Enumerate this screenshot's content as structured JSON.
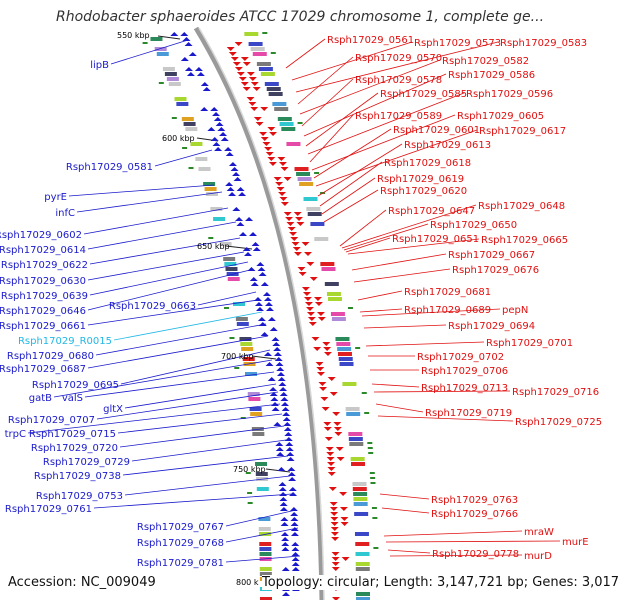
{
  "title": "Rhodobacter sphaeroides ATCC 17029 chromosome 1, complete ge...",
  "accession": "Accession: NC_009049",
  "summary": "Topology: circular; Length: 3,147,721 bp; Genes: 3,017",
  "colors": {
    "left_gene": "#1a1acc",
    "right_gene": "#e01010",
    "rna_gene": "#22b8e6",
    "backbone": "#999999"
  },
  "kbp_marks": [
    "550 kbp",
    "600 kbp",
    "650 kbp",
    "700 kbp",
    "750 kbp",
    "800 k"
  ],
  "left_labels": [
    "lipB",
    "Rsph17029_0581",
    "pyrE",
    "infC",
    "Rsph17029_0602",
    "Rsph17029_0614",
    "Rsph17029_0622",
    "Rsph17029_0630",
    "Rsph17029_0639",
    "Rsph17029_0646",
    "Rsph17029_0663",
    "Rsph17029_0661",
    "Rsph17029_R0015",
    "Rsph17029_0680",
    "Rsph17029_0687",
    "Rsph17029_0695",
    "gatB",
    "valS",
    "gltX",
    "Rsph17029_0707",
    "trpC",
    "Rsph17029_0715",
    "Rsph17029_0720",
    "Rsph17029_0729",
    "Rsph17029_0738",
    "Rsph17029_0753",
    "Rsph17029_0761",
    "Rsph17029_0767",
    "Rsph17029_0768",
    "Rsph17029_0781"
  ],
  "right_labels": [
    "Rsph17029_0561",
    "Rsph17029_0573",
    "Rsph17029_0583",
    "Rsph17029_0570",
    "Rsph17029_0582",
    "Rsph17029_0578",
    "Rsph17029_0586",
    "Rsph17029_0585",
    "Rsph17029_0596",
    "Rsph17029_0589",
    "Rsph17029_0605",
    "Rsph17029_0601",
    "Rsph17029_0617",
    "Rsph17029_0613",
    "Rsph17029_0618",
    "Rsph17029_0619",
    "Rsph17029_0620",
    "Rsph17029_0647",
    "Rsph17029_0648",
    "Rsph17029_0650",
    "Rsph17029_0651",
    "Rsph17029_0665",
    "Rsph17029_0667",
    "Rsph17029_0676",
    "Rsph17029_0681",
    "Rsph17029_0689",
    "pepN",
    "Rsph17029_0694",
    "Rsph17029_0701",
    "Rsph17029_0702",
    "Rsph17029_0706",
    "Rsph17029_0713",
    "Rsph17029_0716",
    "Rsph17029_0719",
    "Rsph17029_0725",
    "Rsph17029_0763",
    "Rsph17029_0766",
    "mraW",
    "murE",
    "Rsph17029_0778",
    "murD"
  ]
}
